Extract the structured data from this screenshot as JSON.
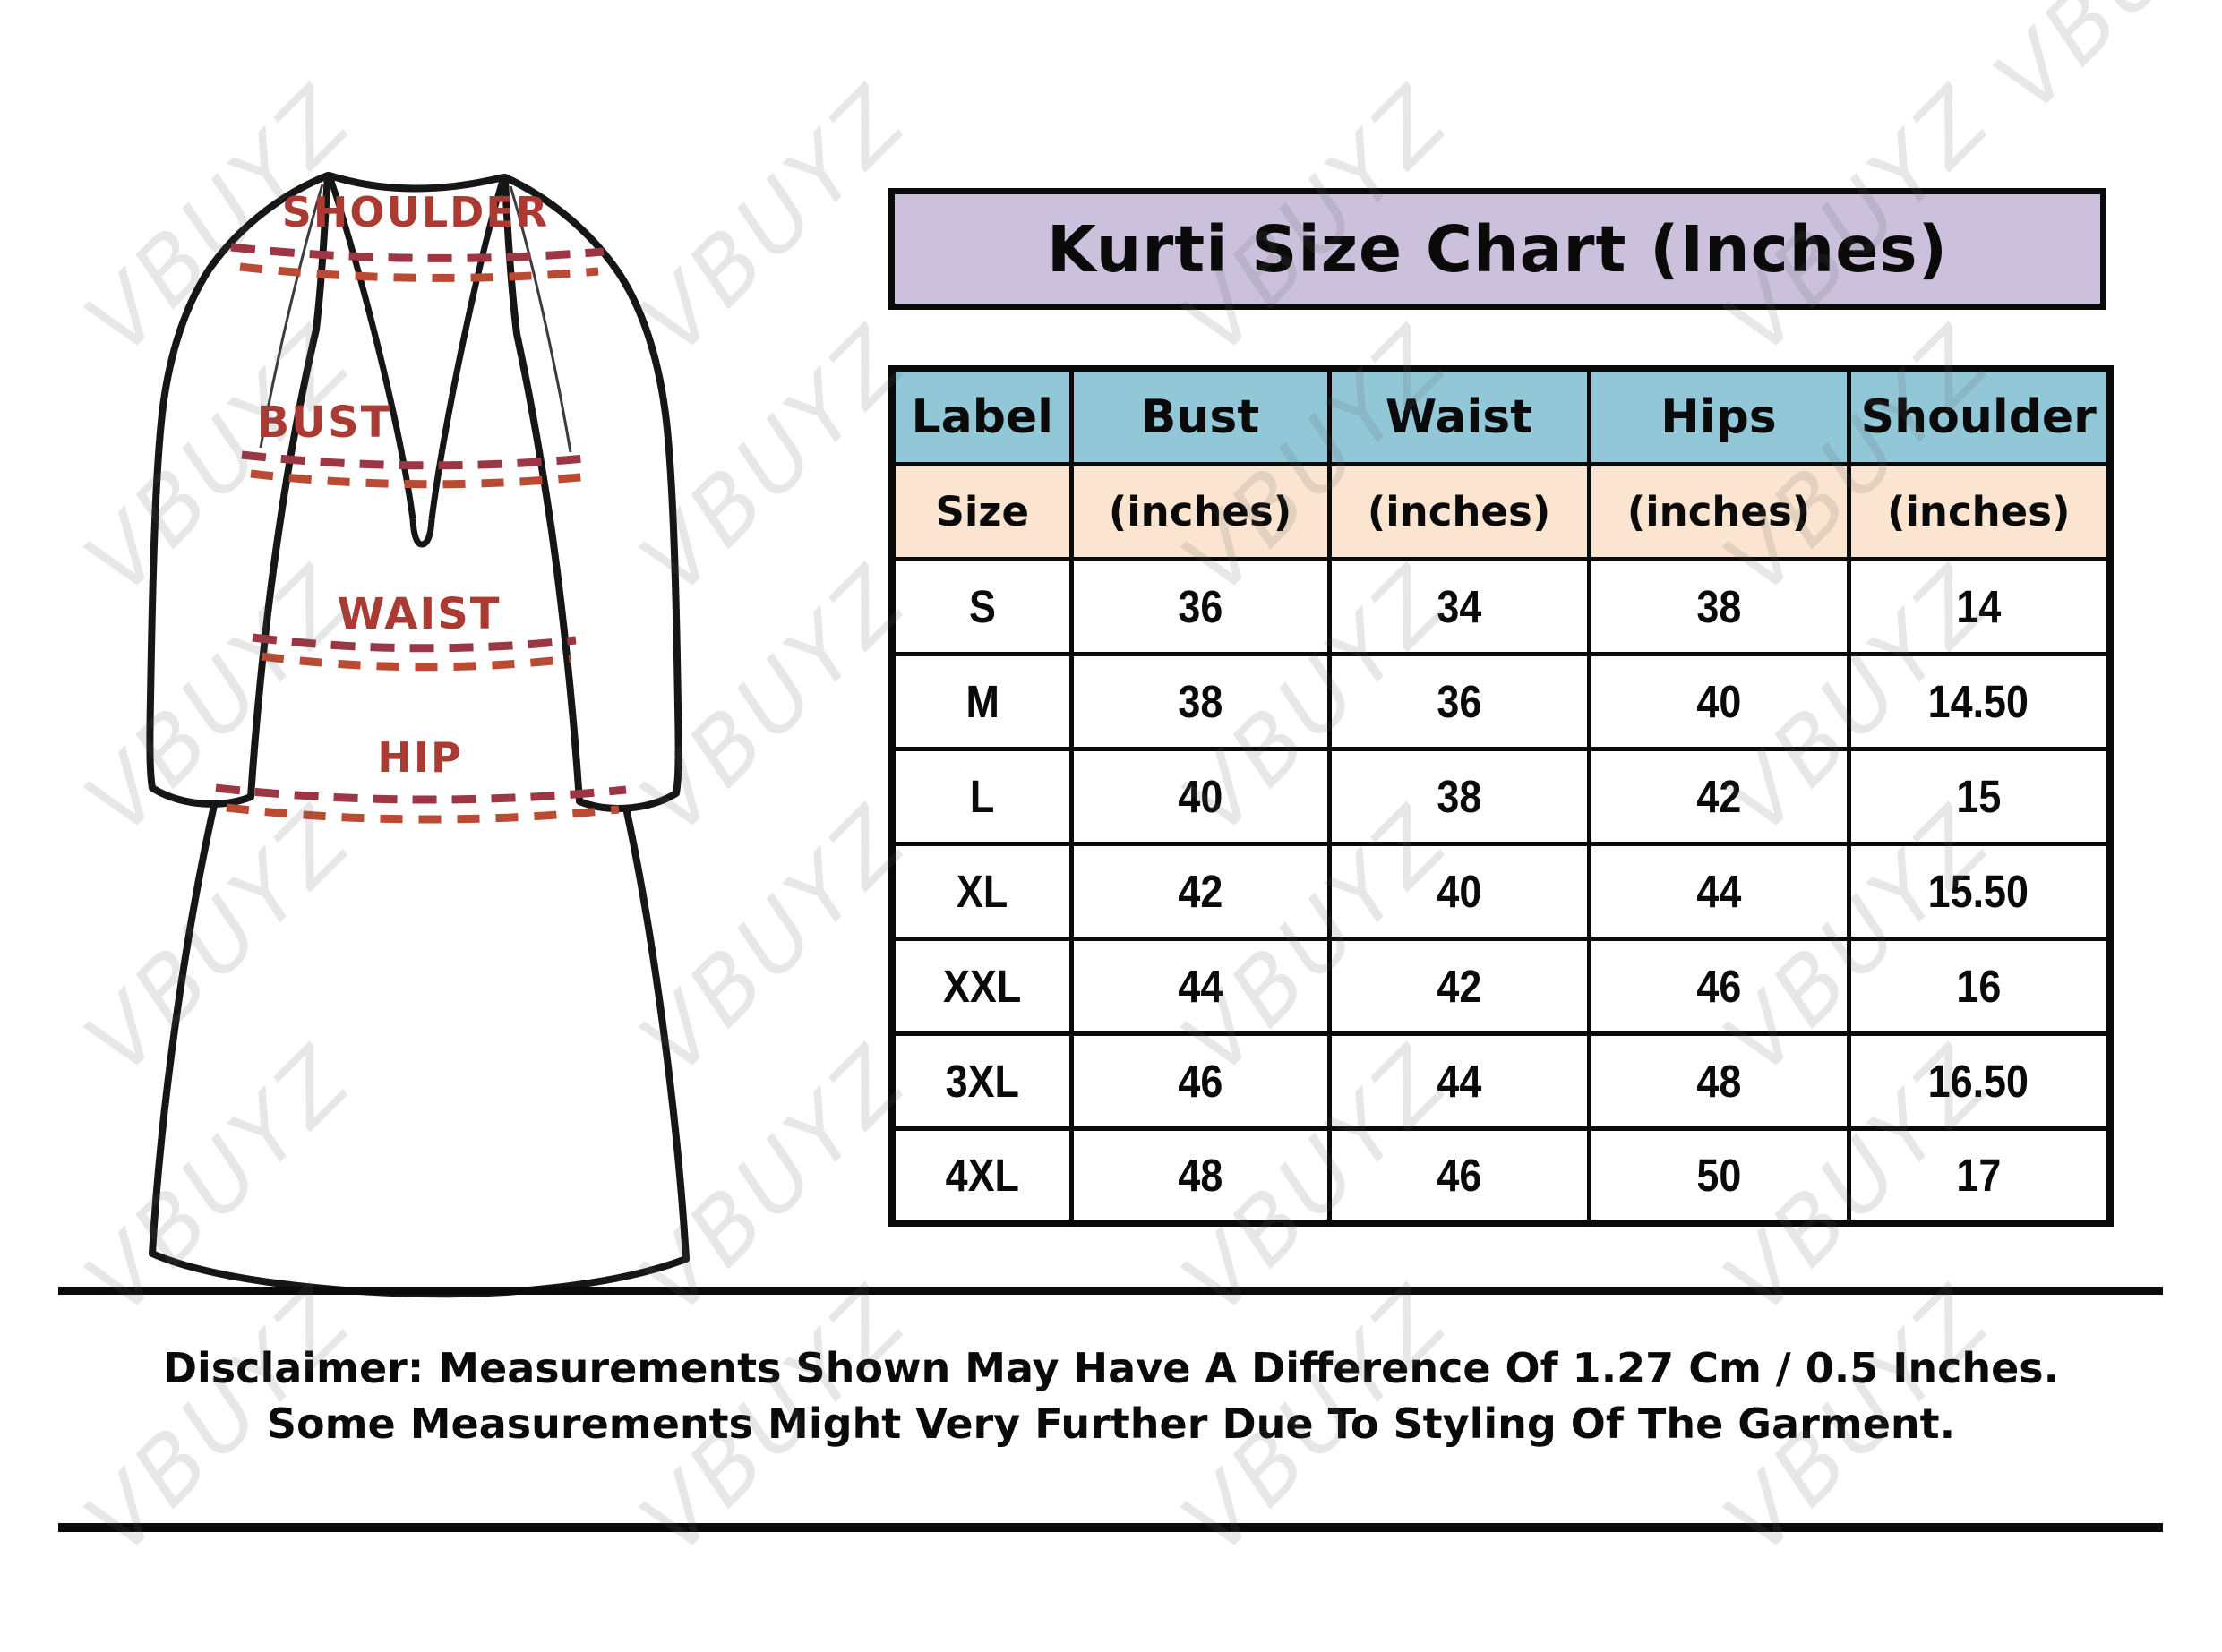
{
  "title": "Kurti Size Chart (Inches)",
  "watermark": {
    "text": "VBUYZ"
  },
  "diagram": {
    "labels": {
      "shoulder": "SHOULDER",
      "bust": "BUST",
      "waist": "WAIST",
      "hip": "HIP"
    }
  },
  "chart_data": {
    "type": "table",
    "title": "Kurti Size Chart (Inches)",
    "columns": [
      "Label",
      "Bust",
      "Waist",
      "Hips",
      "Shoulder"
    ],
    "subheaders": [
      "Size",
      "(inches)",
      "(inches)",
      "(inches)",
      "(inches)"
    ],
    "rows": [
      [
        "S",
        "36",
        "34",
        "38",
        "14"
      ],
      [
        "M",
        "38",
        "36",
        "40",
        "14.50"
      ],
      [
        "L",
        "40",
        "38",
        "42",
        "15"
      ],
      [
        "XL",
        "42",
        "40",
        "44",
        "15.50"
      ],
      [
        "XXL",
        "44",
        "42",
        "46",
        "16"
      ],
      [
        "3XL",
        "46",
        "44",
        "48",
        "16.50"
      ],
      [
        "4XL",
        "48",
        "46",
        "50",
        "17"
      ]
    ]
  },
  "disclaimer": {
    "line1": "Disclaimer: Measurements Shown May Have A Difference Of 1.27 Cm / 0.5 Inches.",
    "line2": "Some Measurements Might Very Further Due To Styling Of The Garment."
  },
  "colors": {
    "title_bg": "#cbc1dc",
    "header_bg": "#92c7d8",
    "subheader_bg": "#fbe5d1",
    "label_red": "#ab3a33",
    "dash_red_dark": "#9c3544",
    "dash_red_bright": "#bb4a33"
  }
}
